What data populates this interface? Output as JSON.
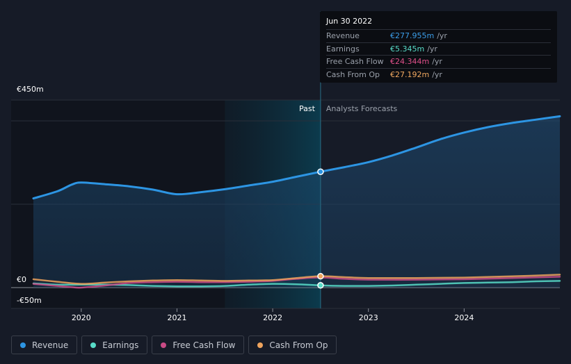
{
  "tooltip": {
    "date": "Jun 30 2022",
    "rows": [
      {
        "label": "Revenue",
        "value": "€277.955m",
        "unit": "/yr",
        "color": "#3b9de8"
      },
      {
        "label": "Earnings",
        "value": "€5.345m",
        "unit": "/yr",
        "color": "#58dcc8"
      },
      {
        "label": "Free Cash Flow",
        "value": "€24.344m",
        "unit": "/yr",
        "color": "#e0508a"
      },
      {
        "label": "Cash From Op",
        "value": "€27.192m",
        "unit": "/yr",
        "color": "#f0a860"
      }
    ]
  },
  "legend": [
    {
      "label": "Revenue",
      "color": "#2d95e3"
    },
    {
      "label": "Earnings",
      "color": "#58dcc8"
    },
    {
      "label": "Free Cash Flow",
      "color": "#c94b86"
    },
    {
      "label": "Cash From Op",
      "color": "#eea35d"
    }
  ],
  "chart_data": {
    "type": "line",
    "title": "",
    "y_tick_labels": [
      "€450m",
      "€0",
      "-€50m"
    ],
    "y_ticks": [
      450,
      0,
      -50
    ],
    "ylim": [
      -50,
      450
    ],
    "xlim": [
      2019.5,
      2025.0
    ],
    "x_tick_labels": [
      "2020",
      "2021",
      "2022",
      "2023",
      "2024"
    ],
    "x_ticks": [
      2020,
      2021,
      2022,
      2023,
      2024
    ],
    "past_label": "Past",
    "forecast_label": "Analysts Forecasts",
    "forecast_start": 2022.5,
    "highlight_start": 2021.5,
    "series": [
      {
        "name": "Revenue",
        "color": "#2d95e3",
        "fill": true,
        "points": [
          [
            2019.5,
            214
          ],
          [
            2019.75,
            231
          ],
          [
            2019.9,
            247
          ],
          [
            2020.0,
            252
          ],
          [
            2020.25,
            248
          ],
          [
            2020.5,
            243
          ],
          [
            2020.75,
            235
          ],
          [
            2021.0,
            224
          ],
          [
            2021.25,
            229
          ],
          [
            2021.5,
            236
          ],
          [
            2021.75,
            245
          ],
          [
            2022.0,
            254
          ],
          [
            2022.25,
            266
          ],
          [
            2022.5,
            278
          ],
          [
            2022.75,
            289
          ],
          [
            2023.0,
            301
          ],
          [
            2023.25,
            317
          ],
          [
            2023.5,
            336
          ],
          [
            2023.75,
            356
          ],
          [
            2024.0,
            372
          ],
          [
            2024.25,
            385
          ],
          [
            2024.5,
            395
          ],
          [
            2024.75,
            403
          ],
          [
            2025.0,
            411
          ]
        ],
        "marker": [
          2022.5,
          277.955
        ]
      },
      {
        "name": "Earnings",
        "color": "#58dcc8",
        "fill": false,
        "points": [
          [
            2019.5,
            10
          ],
          [
            2019.75,
            7
          ],
          [
            2020.0,
            7
          ],
          [
            2020.25,
            7
          ],
          [
            2020.5,
            6
          ],
          [
            2020.75,
            4
          ],
          [
            2021.0,
            3
          ],
          [
            2021.25,
            3
          ],
          [
            2021.5,
            4
          ],
          [
            2021.75,
            7
          ],
          [
            2022.0,
            9
          ],
          [
            2022.25,
            8
          ],
          [
            2022.5,
            5.3
          ],
          [
            2022.75,
            4
          ],
          [
            2023.0,
            4
          ],
          [
            2023.25,
            5
          ],
          [
            2023.5,
            7
          ],
          [
            2023.75,
            9
          ],
          [
            2024.0,
            11
          ],
          [
            2024.25,
            12
          ],
          [
            2024.5,
            13
          ],
          [
            2024.75,
            15
          ],
          [
            2025.0,
            16
          ]
        ],
        "marker": [
          2022.5,
          5.345
        ]
      },
      {
        "name": "Free Cash Flow",
        "color": "#c94b86",
        "fill": false,
        "points": [
          [
            2019.5,
            9
          ],
          [
            2019.75,
            4
          ],
          [
            2019.9,
            1
          ],
          [
            2020.0,
            0
          ],
          [
            2020.25,
            5
          ],
          [
            2020.5,
            11
          ],
          [
            2020.75,
            13
          ],
          [
            2021.0,
            14
          ],
          [
            2021.25,
            13
          ],
          [
            2021.5,
            13
          ],
          [
            2021.75,
            14
          ],
          [
            2022.0,
            16
          ],
          [
            2022.25,
            21
          ],
          [
            2022.5,
            24.3
          ],
          [
            2022.75,
            21
          ],
          [
            2023.0,
            19
          ],
          [
            2023.5,
            19
          ],
          [
            2024.0,
            20
          ],
          [
            2024.5,
            23
          ],
          [
            2025.0,
            26
          ]
        ]
      },
      {
        "name": "Cash From Op",
        "color": "#eea35d",
        "fill": false,
        "points": [
          [
            2019.5,
            20
          ],
          [
            2019.75,
            14
          ],
          [
            2020.0,
            9
          ],
          [
            2020.25,
            12
          ],
          [
            2020.5,
            15
          ],
          [
            2020.75,
            17
          ],
          [
            2021.0,
            18
          ],
          [
            2021.25,
            17
          ],
          [
            2021.5,
            16
          ],
          [
            2021.75,
            17
          ],
          [
            2022.0,
            18
          ],
          [
            2022.25,
            23
          ],
          [
            2022.5,
            27.2
          ],
          [
            2022.75,
            25
          ],
          [
            2023.0,
            23
          ],
          [
            2023.5,
            23
          ],
          [
            2024.0,
            24
          ],
          [
            2024.5,
            27
          ],
          [
            2025.0,
            31
          ]
        ],
        "marker": [
          2022.5,
          27.192
        ]
      }
    ]
  }
}
